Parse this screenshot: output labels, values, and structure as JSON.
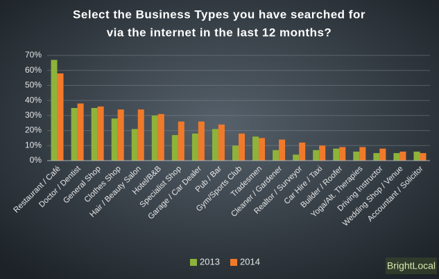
{
  "brand": "BrightLocal",
  "chart_data": {
    "type": "bar",
    "title": [
      "Select the Business Types you have searched for",
      "via the internet in the last 12 months?"
    ],
    "categories": [
      "Restaurant / Café",
      "Doctor / Dentist",
      "General Shop",
      "Clothes Shop",
      "Hair / Beauty Salon",
      "Hotel/B&B",
      "Specialist Shop",
      "Garage / Car Dealer",
      "Pub / Bar",
      "Gym/Sports Club",
      "Tradesmen",
      "Cleaner / Gardener",
      "Realtor / Surveyor",
      "Car Hire / Taxi",
      "Builder / Roofer",
      "Yoga/Alt. Therapies",
      "Driving Instructor",
      "Wedding Shop / Venue",
      "Accountant / Solicitor"
    ],
    "series": [
      {
        "name": "2013",
        "color": "#8db33a",
        "values": [
          67,
          35,
          35,
          28,
          21,
          30,
          17,
          18,
          21,
          10,
          16,
          7,
          4,
          7,
          8,
          6,
          5,
          5,
          6
        ]
      },
      {
        "name": "2014",
        "color": "#f07a2a",
        "values": [
          58,
          38,
          36,
          34,
          34,
          31,
          26,
          26,
          24,
          18,
          15,
          14,
          12,
          10,
          9,
          9,
          8,
          6,
          5
        ]
      }
    ],
    "ylim": [
      0,
      70
    ],
    "yticks": [
      {
        "value": 0,
        "label": "0%"
      },
      {
        "value": 10,
        "label": "10%"
      },
      {
        "value": 20,
        "label": "20%"
      },
      {
        "value": 30,
        "label": "30%"
      },
      {
        "value": 40,
        "label": "40%"
      },
      {
        "value": 50,
        "label": "50%"
      },
      {
        "value": 60,
        "label": "60%"
      },
      {
        "value": 70,
        "label": "70%"
      }
    ],
    "grid": true,
    "legend": "bottom"
  }
}
